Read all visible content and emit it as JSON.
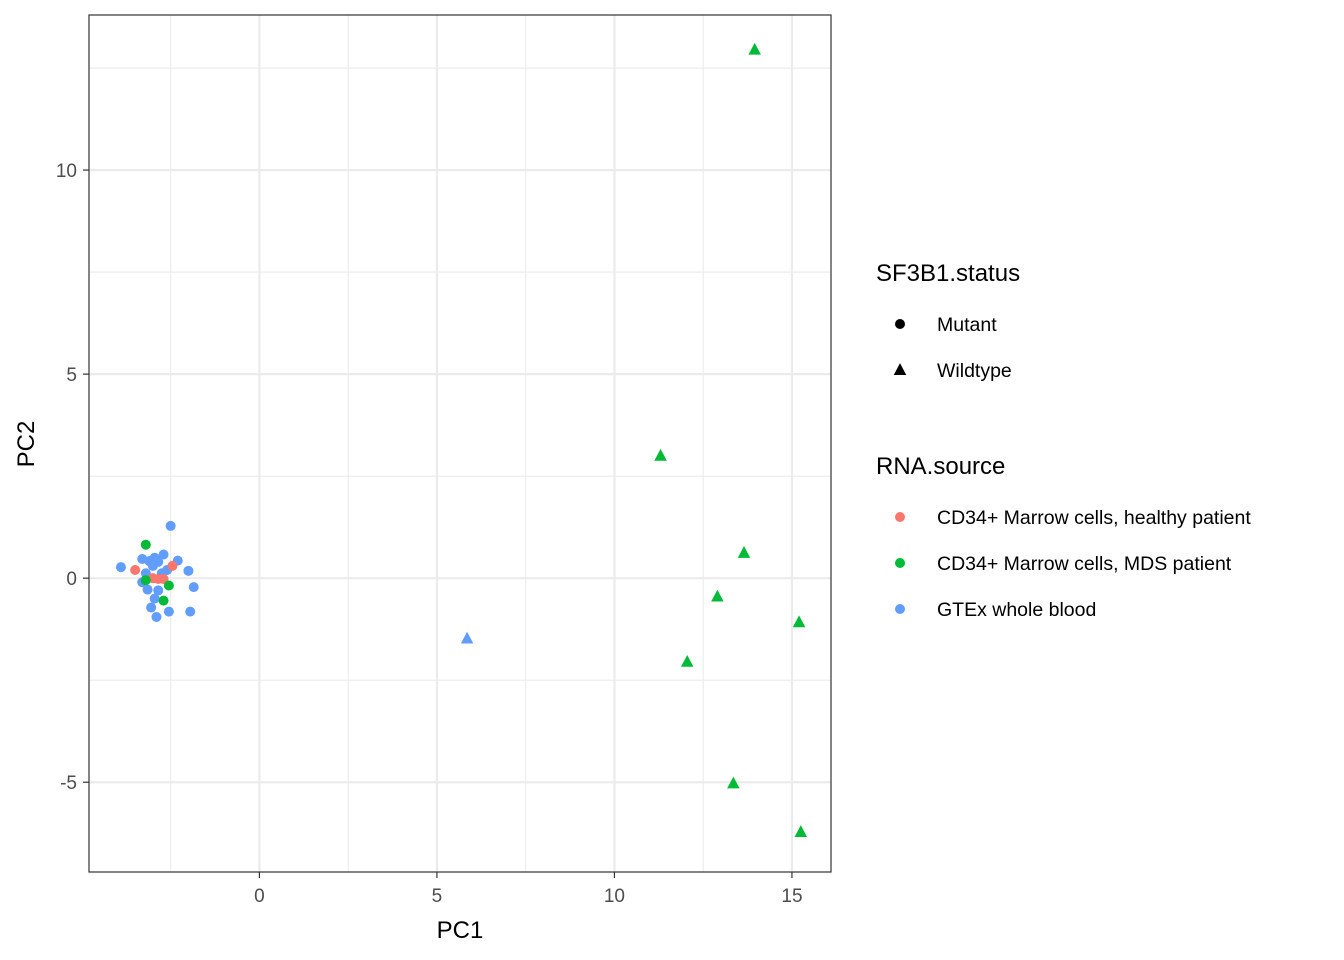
{
  "chart_data": {
    "type": "scatter",
    "title": "",
    "xlabel": "PC1",
    "ylabel": "PC2",
    "xlim": [
      -4.8,
      16.1
    ],
    "ylim": [
      -7.2,
      13.8
    ],
    "x_ticks": [
      0,
      5,
      10,
      15
    ],
    "x_tick_labels": [
      "0",
      "5",
      "10",
      "15"
    ],
    "y_ticks": [
      -5,
      0,
      5,
      10
    ],
    "y_tick_labels": [
      "-5",
      "0",
      "5",
      "10"
    ],
    "grid": true,
    "legend_position": "right",
    "legends": {
      "shape": {
        "title": "SF3B1.status",
        "entries": [
          {
            "label": "Mutant",
            "shape": "circle"
          },
          {
            "label": "Wildtype",
            "shape": "triangle"
          }
        ]
      },
      "color": {
        "title": "RNA.source",
        "entries": [
          {
            "label": "CD34+ Marrow cells, healthy patient",
            "color": "#F8766D"
          },
          {
            "label": "CD34+ Marrow cells, MDS patient",
            "color": "#00BA38"
          },
          {
            "label": "GTEx whole blood",
            "color": "#619CFF"
          }
        ]
      }
    },
    "series": [
      {
        "color": "#619CFF",
        "shape": "circle",
        "points": [
          [
            -3.9,
            0.27
          ],
          [
            -3.3,
            0.47
          ],
          [
            -3.2,
            0.12
          ],
          [
            -3.1,
            0.42
          ],
          [
            -2.95,
            0.5
          ],
          [
            -2.85,
            0.4
          ],
          [
            -2.7,
            0.58
          ],
          [
            -2.5,
            1.28
          ],
          [
            -2.3,
            0.43
          ],
          [
            -2.0,
            0.18
          ],
          [
            -1.85,
            -0.22
          ],
          [
            -3.3,
            -0.1
          ],
          [
            -3.15,
            -0.28
          ],
          [
            -2.95,
            -0.5
          ],
          [
            -2.85,
            -0.3
          ],
          [
            -2.75,
            0.12
          ],
          [
            -3.05,
            -0.72
          ],
          [
            -2.9,
            -0.95
          ],
          [
            -2.55,
            -0.82
          ],
          [
            -1.95,
            -0.82
          ],
          [
            -3.0,
            0.3
          ],
          [
            -2.6,
            0.2
          ]
        ]
      },
      {
        "color": "#F8766D",
        "shape": "circle",
        "points": [
          [
            -3.5,
            0.2
          ],
          [
            -2.45,
            0.3
          ],
          [
            -3.0,
            0.0
          ],
          [
            -2.85,
            -0.02
          ],
          [
            -2.7,
            -0.02
          ]
        ]
      },
      {
        "color": "#00BA38",
        "shape": "circle",
        "points": [
          [
            -3.2,
            0.82
          ],
          [
            -3.2,
            -0.05
          ],
          [
            -2.55,
            -0.18
          ],
          [
            -2.7,
            -0.55
          ]
        ]
      },
      {
        "color": "#619CFF",
        "shape": "triangle",
        "points": [
          [
            5.85,
            -1.48
          ]
        ]
      },
      {
        "color": "#00BA38",
        "shape": "triangle",
        "points": [
          [
            13.95,
            12.95
          ],
          [
            11.3,
            3.0
          ],
          [
            13.65,
            0.62
          ],
          [
            12.9,
            -0.45
          ],
          [
            15.2,
            -1.08
          ],
          [
            12.05,
            -2.05
          ],
          [
            13.35,
            -5.03
          ],
          [
            15.25,
            -6.22
          ]
        ]
      }
    ]
  }
}
